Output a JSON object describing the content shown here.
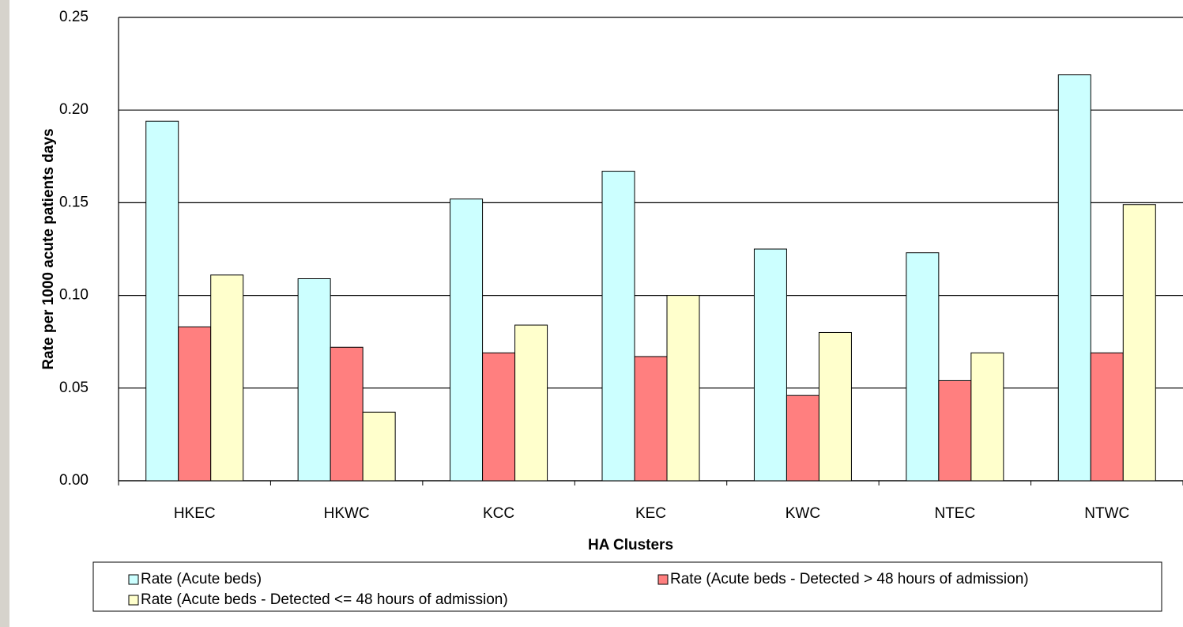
{
  "chart_data": {
    "type": "bar",
    "y_label": "Rate per 1000 acute patients days",
    "x_label": "HA Clusters",
    "categories": [
      "HKEC",
      "HKWC",
      "KCC",
      "KEC",
      "KWC",
      "NTEC",
      "NTWC"
    ],
    "series": [
      {
        "name": "Rate (Acute beds)",
        "color": "#ccffff",
        "values": [
          0.194,
          0.109,
          0.152,
          0.167,
          0.125,
          0.123,
          0.219
        ]
      },
      {
        "name": "Rate (Acute beds - Detected > 48 hours of admission)",
        "color": "#ff7f7f",
        "values": [
          0.083,
          0.072,
          0.069,
          0.067,
          0.046,
          0.054,
          0.069
        ]
      },
      {
        "name": "Rate (Acute beds - Detected <= 48 hours of admission)",
        "color": "#ffffcc",
        "values": [
          0.111,
          0.037,
          0.084,
          0.1,
          0.08,
          0.069,
          0.149
        ]
      }
    ],
    "ylim": [
      0,
      0.25
    ],
    "yticks": [
      {
        "value": 0,
        "label": "0.00"
      },
      0.05,
      {
        "value": 0.1,
        "label": "0.10"
      },
      0.15,
      {
        "value": 0.2,
        "label": "0.20"
      },
      0.25
    ],
    "grid": true
  }
}
